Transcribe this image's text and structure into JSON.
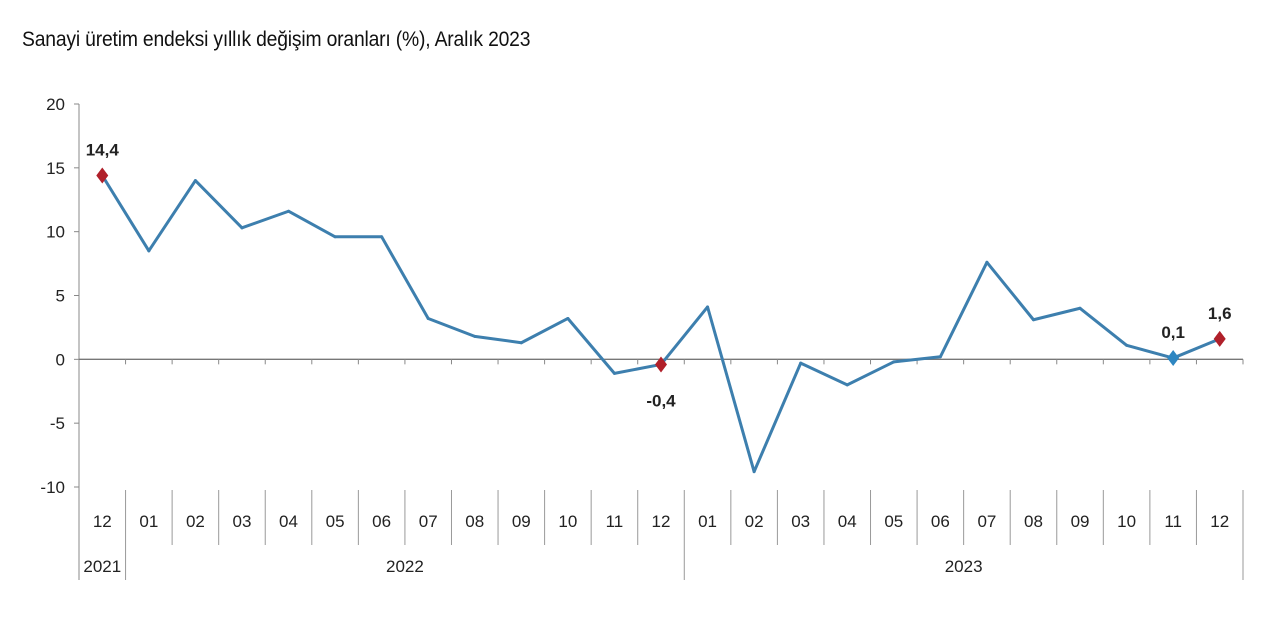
{
  "chart_data": {
    "type": "line",
    "title": "Sanayi üretim endeksi yıllık değişim oranları (%), Aralık 2023",
    "xlabel": "",
    "ylabel": "",
    "ylim": [
      -10,
      20
    ],
    "yticks": [
      "20",
      "15",
      "10",
      "5",
      "0",
      "-5",
      "-10"
    ],
    "ytick_values": [
      20,
      15,
      10,
      5,
      0,
      -5,
      -10
    ],
    "grid": false,
    "categories": [
      "12",
      "01",
      "02",
      "03",
      "04",
      "05",
      "06",
      "07",
      "08",
      "09",
      "10",
      "11",
      "12",
      "01",
      "02",
      "03",
      "04",
      "05",
      "06",
      "07",
      "08",
      "09",
      "10",
      "11",
      "12"
    ],
    "year_groups": [
      {
        "label": "2021",
        "count": 1
      },
      {
        "label": "2022",
        "count": 12
      },
      {
        "label": "2023",
        "count": 12
      }
    ],
    "series": [
      {
        "values": [
          14.4,
          8.5,
          14.0,
          10.3,
          11.6,
          9.6,
          9.6,
          3.2,
          1.8,
          1.3,
          3.2,
          -1.1,
          -0.4,
          4.1,
          -8.8,
          -0.3,
          -2.0,
          -0.2,
          0.2,
          7.6,
          3.1,
          4.0,
          1.1,
          0.1,
          1.6
        ],
        "color": "#3d7fae"
      }
    ],
    "annotations": [
      {
        "index": 0,
        "label": "14,4",
        "marker_color": "#b0202a",
        "position": "above"
      },
      {
        "index": 12,
        "label": "-0,4",
        "marker_color": "#b0202a",
        "position": "below"
      },
      {
        "index": 23,
        "label": "0,1",
        "marker_color": "#2e86c1",
        "position": "above"
      },
      {
        "index": 24,
        "label": "1,6",
        "marker_color": "#b0202a",
        "position": "above"
      }
    ]
  }
}
